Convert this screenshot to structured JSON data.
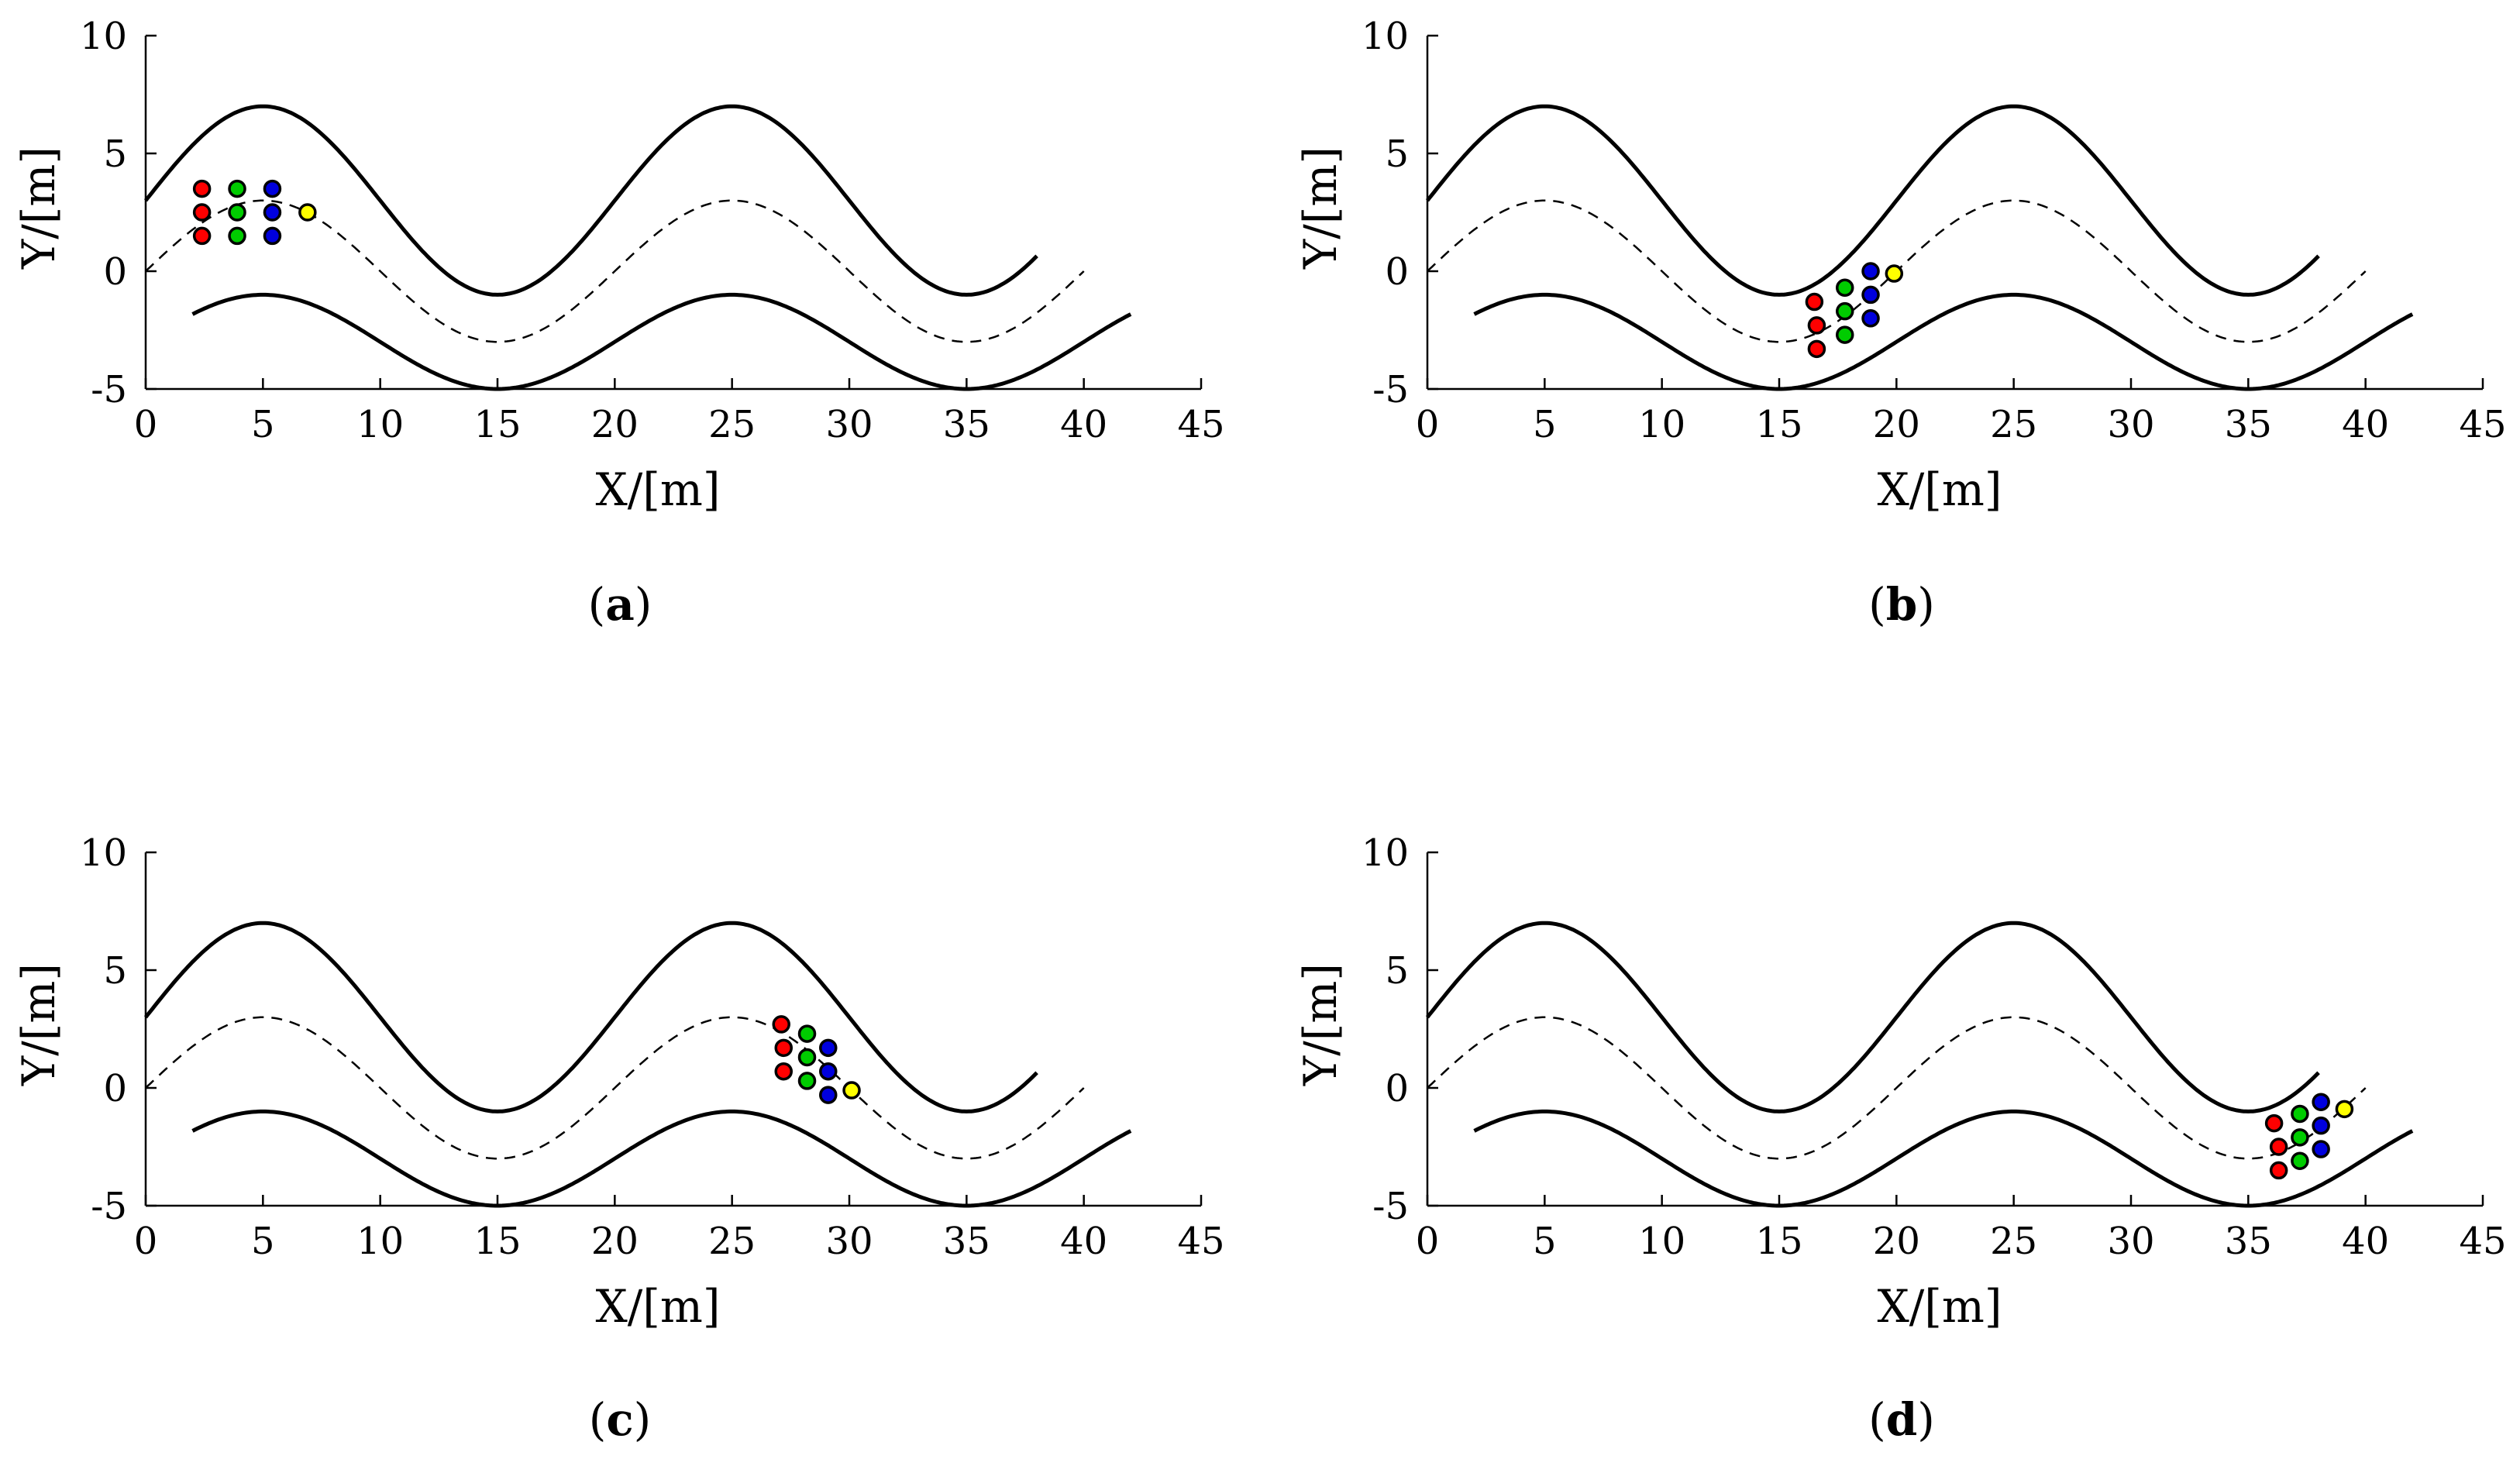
{
  "chart_data": [
    {
      "type": "line",
      "caption_letter": "a",
      "xlabel": "X/[m]",
      "ylabel": "Y/[m]",
      "xlim": [
        0,
        45
      ],
      "ylim": [
        -5,
        10
      ],
      "xticks": [
        "0",
        "5",
        "10",
        "15",
        "20",
        "25",
        "30",
        "35",
        "40",
        "45"
      ],
      "yticks": [
        "-5",
        "0",
        "5",
        "10"
      ],
      "vehicles": [
        {
          "color": "#ff0000",
          "x": 2.4,
          "y": 3.5
        },
        {
          "color": "#ff0000",
          "x": 2.4,
          "y": 2.5
        },
        {
          "color": "#ff0000",
          "x": 2.4,
          "y": 1.5
        },
        {
          "color": "#00cc00",
          "x": 3.9,
          "y": 3.5
        },
        {
          "color": "#00cc00",
          "x": 3.9,
          "y": 2.5
        },
        {
          "color": "#00cc00",
          "x": 3.9,
          "y": 1.5
        },
        {
          "color": "#0000dd",
          "x": 5.4,
          "y": 3.5
        },
        {
          "color": "#0000dd",
          "x": 5.4,
          "y": 2.5
        },
        {
          "color": "#0000dd",
          "x": 5.4,
          "y": 1.5
        },
        {
          "color": "#ffff00",
          "x": 6.9,
          "y": 2.5
        }
      ]
    },
    {
      "type": "line",
      "caption_letter": "b",
      "xlabel": "X/[m]",
      "ylabel": "Y/[m]",
      "xlim": [
        0,
        45
      ],
      "ylim": [
        -5,
        10
      ],
      "xticks": [
        "0",
        "5",
        "10",
        "15",
        "20",
        "25",
        "30",
        "35",
        "40",
        "45"
      ],
      "yticks": [
        "-5",
        "0",
        "5",
        "10"
      ],
      "vehicles": [
        {
          "color": "#ff0000",
          "x": 16.5,
          "y": -1.3
        },
        {
          "color": "#ff0000",
          "x": 16.6,
          "y": -2.3
        },
        {
          "color": "#ff0000",
          "x": 16.6,
          "y": -3.3
        },
        {
          "color": "#00cc00",
          "x": 17.8,
          "y": -0.7
        },
        {
          "color": "#00cc00",
          "x": 17.8,
          "y": -1.7
        },
        {
          "color": "#00cc00",
          "x": 17.8,
          "y": -2.7
        },
        {
          "color": "#0000dd",
          "x": 18.9,
          "y": 0.0
        },
        {
          "color": "#0000dd",
          "x": 18.9,
          "y": -1.0
        },
        {
          "color": "#0000dd",
          "x": 18.9,
          "y": -2.0
        },
        {
          "color": "#ffff00",
          "x": 19.9,
          "y": -0.1
        }
      ]
    },
    {
      "type": "line",
      "caption_letter": "c",
      "xlabel": "X/[m]",
      "ylabel": "Y/[m]",
      "xlim": [
        0,
        45
      ],
      "ylim": [
        -5,
        10
      ],
      "xticks": [
        "0",
        "5",
        "10",
        "15",
        "20",
        "25",
        "30",
        "35",
        "40",
        "45"
      ],
      "yticks": [
        "-5",
        "0",
        "5",
        "10"
      ],
      "vehicles": [
        {
          "color": "#ff0000",
          "x": 27.1,
          "y": 2.7
        },
        {
          "color": "#ff0000",
          "x": 27.2,
          "y": 1.7
        },
        {
          "color": "#ff0000",
          "x": 27.2,
          "y": 0.7
        },
        {
          "color": "#00cc00",
          "x": 28.2,
          "y": 2.3
        },
        {
          "color": "#00cc00",
          "x": 28.2,
          "y": 1.3
        },
        {
          "color": "#00cc00",
          "x": 28.2,
          "y": 0.3
        },
        {
          "color": "#0000dd",
          "x": 29.1,
          "y": 1.7
        },
        {
          "color": "#0000dd",
          "x": 29.1,
          "y": 0.7
        },
        {
          "color": "#0000dd",
          "x": 29.1,
          "y": -0.3
        },
        {
          "color": "#ffff00",
          "x": 30.1,
          "y": -0.1
        }
      ]
    },
    {
      "type": "line",
      "caption_letter": "d",
      "xlabel": "X/[m]",
      "ylabel": "Y/[m]",
      "xlim": [
        0,
        45
      ],
      "ylim": [
        -5,
        10
      ],
      "xticks": [
        "0",
        "5",
        "10",
        "15",
        "20",
        "25",
        "30",
        "35",
        "40",
        "45"
      ],
      "yticks": [
        "-5",
        "0",
        "5",
        "10"
      ],
      "vehicles": [
        {
          "color": "#ff0000",
          "x": 36.1,
          "y": -1.5
        },
        {
          "color": "#ff0000",
          "x": 36.3,
          "y": -2.5
        },
        {
          "color": "#ff0000",
          "x": 36.3,
          "y": -3.5
        },
        {
          "color": "#00cc00",
          "x": 37.2,
          "y": -1.1
        },
        {
          "color": "#00cc00",
          "x": 37.2,
          "y": -2.1
        },
        {
          "color": "#00cc00",
          "x": 37.2,
          "y": -3.1
        },
        {
          "color": "#0000dd",
          "x": 38.1,
          "y": -0.6
        },
        {
          "color": "#0000dd",
          "x": 38.1,
          "y": -1.6
        },
        {
          "color": "#0000dd",
          "x": 38.1,
          "y": -2.6
        },
        {
          "color": "#ffff00",
          "x": 39.1,
          "y": -0.9
        }
      ]
    }
  ]
}
